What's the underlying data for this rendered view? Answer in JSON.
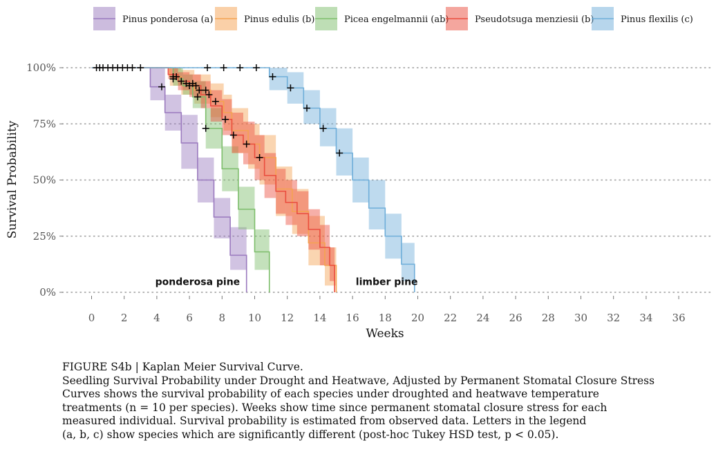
{
  "chart_data": {
    "type": "line",
    "subtype": "kaplan-meier step survival curves with confidence bands",
    "xlabel": "Weeks",
    "ylabel": "Survival Probability",
    "xlim": [
      0,
      37
    ],
    "ylim": [
      0,
      1
    ],
    "x_ticks": [
      0,
      2,
      4,
      6,
      8,
      10,
      12,
      14,
      16,
      18,
      20,
      22,
      24,
      26,
      28,
      30,
      32,
      34,
      36
    ],
    "y_ticks": [
      {
        "value": 0,
        "label": "0%"
      },
      {
        "value": 0.25,
        "label": "25%"
      },
      {
        "value": 0.5,
        "label": "50%"
      },
      {
        "value": 0.75,
        "label": "75%"
      },
      {
        "value": 1,
        "label": "100%"
      }
    ],
    "grid": "horizontal dotted lines at y ticks",
    "legend_position": "top",
    "series": [
      {
        "name": "Pinus ponderosa (a)",
        "color": "#9a79be",
        "steps": [
          [
            0,
            1
          ],
          [
            3.6,
            0.915
          ],
          [
            4.5,
            0.8
          ],
          [
            5.5,
            0.665
          ],
          [
            6.5,
            0.5
          ],
          [
            7.5,
            0.335
          ],
          [
            8.5,
            0.165
          ],
          [
            9.5,
            0
          ]
        ],
        "band": [
          [
            0,
            1,
            1
          ],
          [
            3.6,
            0.855,
            1
          ],
          [
            4.5,
            0.72,
            0.88
          ],
          [
            5.5,
            0.55,
            0.79
          ],
          [
            6.5,
            0.4,
            0.6
          ],
          [
            7.5,
            0.24,
            0.42
          ],
          [
            8.5,
            0.1,
            0.29
          ],
          [
            9.5,
            0,
            0
          ]
        ],
        "censor_x": [
          0.3,
          0.5,
          0.7,
          1.0,
          1.3,
          1.6,
          1.9,
          2.2,
          2.5,
          3.0,
          4.3
        ]
      },
      {
        "name": "Pinus edulis (b)",
        "color": "#f5a251",
        "steps": [
          [
            0,
            1
          ],
          [
            4.8,
            0.96
          ],
          [
            5.5,
            0.93
          ],
          [
            6.3,
            0.9
          ],
          [
            7.3,
            0.85
          ],
          [
            8.1,
            0.8
          ],
          [
            8.6,
            0.72
          ],
          [
            9.6,
            0.66
          ],
          [
            10.3,
            0.6
          ],
          [
            11.3,
            0.46
          ],
          [
            12.3,
            0.36
          ],
          [
            13.3,
            0.22
          ],
          [
            14.3,
            0.12
          ],
          [
            15,
            0
          ]
        ],
        "band": [
          [
            0,
            1,
            1
          ],
          [
            4.8,
            0.92,
            1
          ],
          [
            5.5,
            0.88,
            0.99
          ],
          [
            6.3,
            0.84,
            0.97
          ],
          [
            7.3,
            0.78,
            0.93
          ],
          [
            8.1,
            0.72,
            0.88
          ],
          [
            8.6,
            0.62,
            0.82
          ],
          [
            9.6,
            0.55,
            0.75
          ],
          [
            10.3,
            0.48,
            0.7
          ],
          [
            11.3,
            0.34,
            0.56
          ],
          [
            12.3,
            0.26,
            0.46
          ],
          [
            13.3,
            0.12,
            0.34
          ],
          [
            14.3,
            0.03,
            0.2
          ],
          [
            15,
            0,
            0
          ]
        ],
        "censor_x": [
          5.0,
          5.2,
          5.8,
          6.2,
          6.6,
          7.0,
          7.6
        ]
      },
      {
        "name": "Picea engelmannii (ab)",
        "color": "#7dbd6b",
        "steps": [
          [
            0,
            1
          ],
          [
            5.0,
            0.95
          ],
          [
            5.6,
            0.92
          ],
          [
            6.2,
            0.87
          ],
          [
            7.0,
            0.73
          ],
          [
            8.0,
            0.55
          ],
          [
            9.0,
            0.37
          ],
          [
            10.0,
            0.18
          ],
          [
            10.9,
            0
          ]
        ],
        "band": [
          [
            0,
            1,
            1
          ],
          [
            5.0,
            0.92,
            1
          ],
          [
            5.6,
            0.88,
            0.97
          ],
          [
            6.2,
            0.82,
            0.94
          ],
          [
            7.0,
            0.64,
            0.82
          ],
          [
            8.0,
            0.45,
            0.65
          ],
          [
            9.0,
            0.28,
            0.47
          ],
          [
            10.0,
            0.1,
            0.28
          ],
          [
            10.9,
            0,
            0
          ]
        ],
        "censor_x": [
          5.0,
          6.5,
          7.0
        ]
      },
      {
        "name": "Pseudotsuga menziesii (b)",
        "color": "#ea4d3e",
        "steps": [
          [
            0,
            1
          ],
          [
            4.7,
            0.97
          ],
          [
            5.3,
            0.94
          ],
          [
            6.0,
            0.92
          ],
          [
            6.7,
            0.88
          ],
          [
            7.3,
            0.83
          ],
          [
            8.0,
            0.77
          ],
          [
            8.6,
            0.7
          ],
          [
            9.3,
            0.66
          ],
          [
            10.0,
            0.6
          ],
          [
            10.6,
            0.52
          ],
          [
            11.3,
            0.45
          ],
          [
            11.9,
            0.4
          ],
          [
            12.6,
            0.35
          ],
          [
            13.3,
            0.28
          ],
          [
            14.0,
            0.2
          ],
          [
            14.6,
            0.12
          ],
          [
            14.9,
            0
          ]
        ],
        "band": [
          [
            0,
            1,
            1
          ],
          [
            4.7,
            0.95,
            1
          ],
          [
            5.3,
            0.9,
            0.98
          ],
          [
            6.0,
            0.87,
            0.97
          ],
          [
            6.7,
            0.82,
            0.94
          ],
          [
            7.3,
            0.76,
            0.9
          ],
          [
            8.0,
            0.7,
            0.86
          ],
          [
            8.6,
            0.62,
            0.8
          ],
          [
            9.3,
            0.57,
            0.76
          ],
          [
            10.0,
            0.5,
            0.7
          ],
          [
            10.6,
            0.42,
            0.62
          ],
          [
            11.3,
            0.35,
            0.55
          ],
          [
            11.9,
            0.3,
            0.5
          ],
          [
            12.6,
            0.25,
            0.45
          ],
          [
            13.3,
            0.19,
            0.37
          ],
          [
            14.0,
            0.12,
            0.3
          ],
          [
            14.6,
            0.05,
            0.2
          ],
          [
            14.9,
            0,
            0
          ]
        ],
        "censor_x": [
          5.5,
          6.0,
          6.4,
          7.2,
          8.2,
          8.7,
          9.5,
          10.3
        ]
      },
      {
        "name": "Pinus flexilis (c)",
        "color": "#6faed9",
        "steps": [
          [
            0,
            1
          ],
          [
            10.9,
            0.96
          ],
          [
            12.0,
            0.91
          ],
          [
            13.0,
            0.82
          ],
          [
            14.0,
            0.73
          ],
          [
            15.0,
            0.62
          ],
          [
            16.0,
            0.5
          ],
          [
            17.0,
            0.375
          ],
          [
            18.0,
            0.25
          ],
          [
            19.0,
            0.125
          ],
          [
            19.8,
            0
          ]
        ],
        "band": [
          [
            0,
            1,
            1
          ],
          [
            10.9,
            0.9,
            1
          ],
          [
            12.0,
            0.84,
            0.98
          ],
          [
            13.0,
            0.75,
            0.9
          ],
          [
            14.0,
            0.65,
            0.82
          ],
          [
            15.0,
            0.52,
            0.73
          ],
          [
            16.0,
            0.4,
            0.6
          ],
          [
            17.0,
            0.28,
            0.5
          ],
          [
            18.0,
            0.15,
            0.35
          ],
          [
            19.0,
            0.05,
            0.22
          ],
          [
            19.8,
            0,
            0
          ]
        ],
        "censor_x": [
          7.1,
          8.1,
          9.1,
          10.1,
          11.1,
          12.2,
          13.2,
          14.2,
          15.2
        ]
      }
    ],
    "annotations": [
      {
        "text": "ponderosa pine",
        "x": 6.5,
        "y": 0.045
      },
      {
        "text": "limber pine",
        "x": 18.1,
        "y": 0.045
      }
    ]
  },
  "caption": {
    "lines": [
      "FIGURE S4b | Kaplan Meier Survival Curve.",
      "Seedling Survival Probability under Drought and Heatwave, Adjusted by Permanent Stomatal Closure Stress",
      "Curves shows the survival probability of each species under droughted and heatwave temperature",
      "treatments (n = 10 per species). Weeks show time since permanent stomatal closure stress for each",
      "measured individual. Survival probability is estimated from observed data. Letters in the legend",
      "(a, b, c) show species which are significantly different (post-hoc Tukey HSD test, p < 0.05)."
    ]
  }
}
